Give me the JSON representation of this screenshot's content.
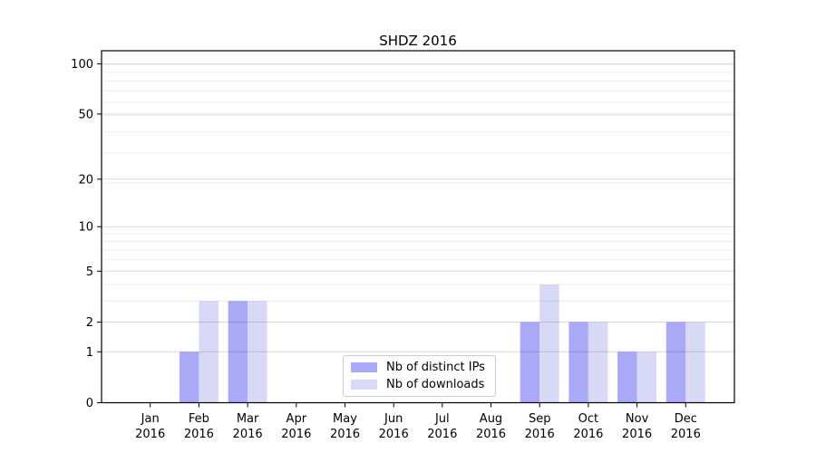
{
  "chart_data": {
    "type": "bar",
    "title": "SHDZ 2016",
    "categories": [
      "Jan 2016",
      "Feb 2016",
      "Mar 2016",
      "Apr 2016",
      "May 2016",
      "Jun 2016",
      "Jul 2016",
      "Aug 2016",
      "Sep 2016",
      "Oct 2016",
      "Nov 2016",
      "Dec 2016"
    ],
    "series": [
      {
        "name": "Nb of distinct IPs",
        "color": "#a9a9f7",
        "values": [
          0,
          1,
          3,
          0,
          0,
          0,
          0,
          0,
          2,
          2,
          1,
          2
        ]
      },
      {
        "name": "Nb of downloads",
        "color": "#d8d8f7",
        "values": [
          0,
          3,
          3,
          0,
          0,
          0,
          0,
          0,
          4,
          2,
          1,
          2
        ]
      }
    ],
    "xlabel": "",
    "ylabel": "",
    "yscale": "log(1+x)",
    "yticks": [
      0,
      1,
      2,
      5,
      10,
      20,
      50,
      100
    ],
    "ylim": [
      0,
      120
    ],
    "grid": true,
    "legend_position": "lower center",
    "colors": {
      "axis": "#000000",
      "tick_label": "#000000",
      "grid_major": "#d9d9d9",
      "grid_minor": "#ededed",
      "legend_border": "#cccccc",
      "background": "#ffffff"
    }
  }
}
